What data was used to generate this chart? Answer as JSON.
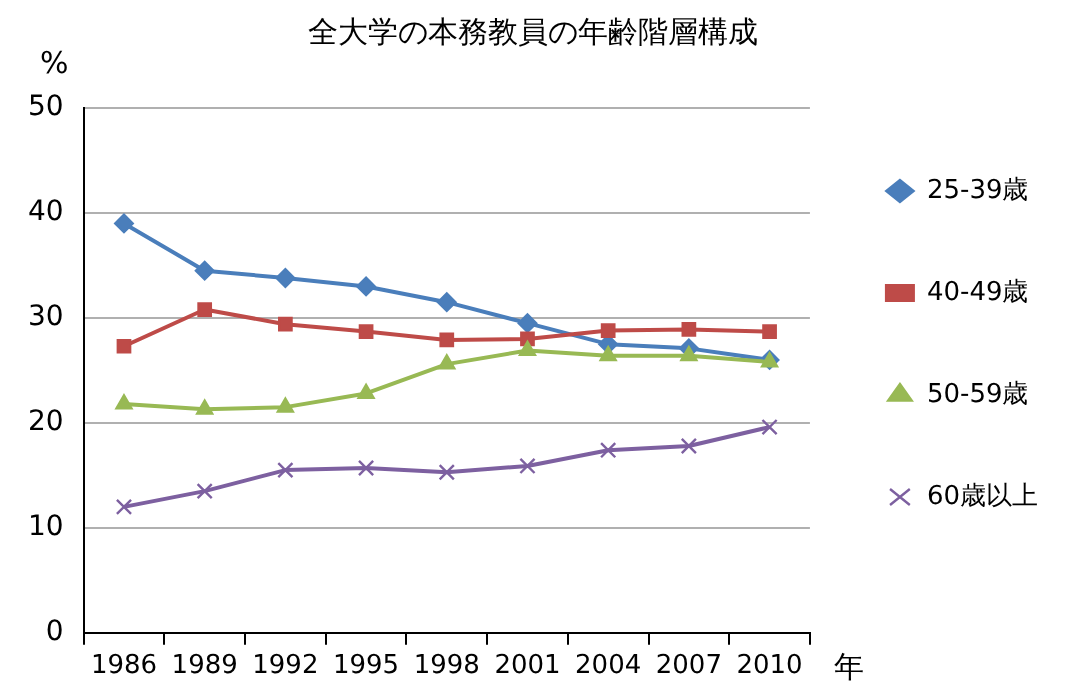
{
  "chart_data": {
    "type": "line",
    "title": "全大学の本務教員の年齢階層構成",
    "ylabel": "%",
    "xlabel": "年",
    "categories": [
      "1986",
      "1989",
      "1992",
      "1995",
      "1998",
      "2001",
      "2004",
      "2007",
      "2010"
    ],
    "series": [
      {
        "name": "25-39歳",
        "color": "#4a7ebb",
        "marker": "diamond",
        "values": [
          39.0,
          34.5,
          33.8,
          33.0,
          31.5,
          29.5,
          27.5,
          27.1,
          26.0
        ]
      },
      {
        "name": "40-49歳",
        "color": "#be4b48",
        "marker": "square",
        "values": [
          27.3,
          30.8,
          29.4,
          28.7,
          27.9,
          28.0,
          28.8,
          28.9,
          28.7
        ]
      },
      {
        "name": "50-59歳",
        "color": "#98b954",
        "marker": "triangle",
        "values": [
          21.8,
          21.3,
          21.5,
          22.8,
          25.6,
          26.9,
          26.4,
          26.4,
          25.8
        ]
      },
      {
        "name": "60歳以上",
        "color": "#7d60a0",
        "marker": "cross",
        "values": [
          12.0,
          13.5,
          15.5,
          15.7,
          15.3,
          15.9,
          17.4,
          17.8,
          19.6
        ]
      }
    ],
    "ylim": [
      0,
      50
    ],
    "yticks": [
      0,
      10,
      20,
      30,
      40,
      50
    ],
    "grid": "y",
    "legend": "right"
  }
}
